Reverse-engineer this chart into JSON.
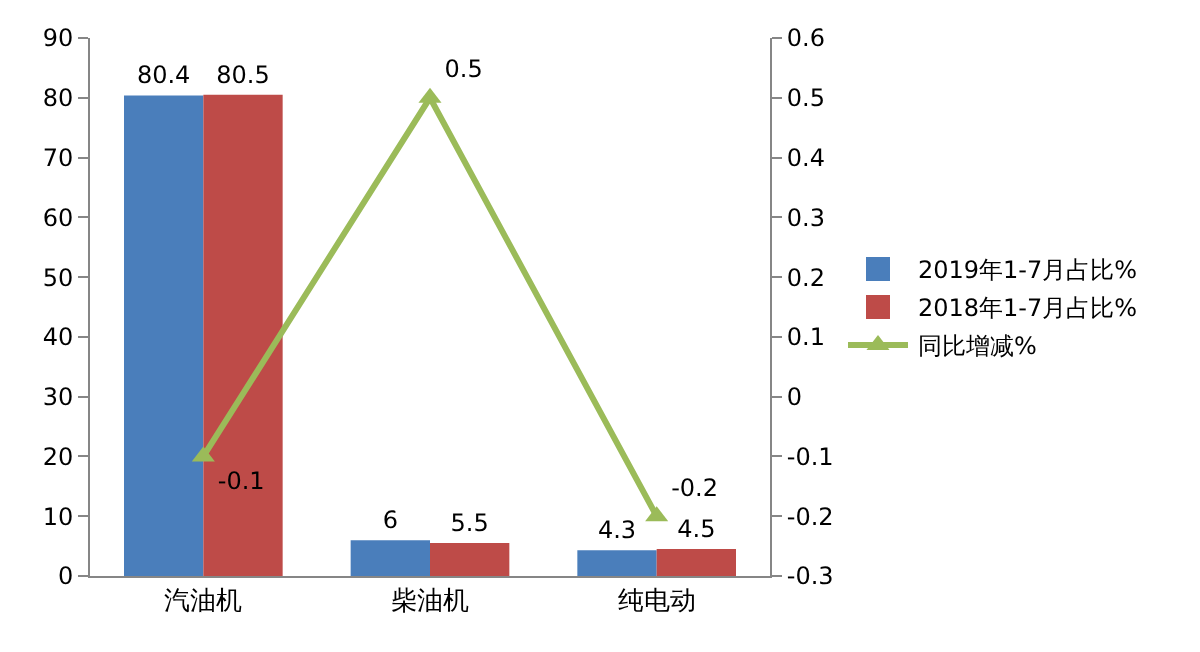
{
  "chart_data": {
    "type": "bar",
    "categories": [
      "汽油机",
      "柴油机",
      "纯电动"
    ],
    "series": [
      {
        "name": "2019年1-7月占比%",
        "color": "#4a7ebb",
        "values": [
          80.4,
          6,
          4.3
        ]
      },
      {
        "name": "2018年1-7月占比%",
        "color": "#be4b48",
        "values": [
          80.5,
          5.5,
          4.5
        ]
      },
      {
        "name": "同比增减%",
        "color": "#9bbb59",
        "values": [
          -0.1,
          0.5,
          -0.2
        ],
        "type": "line",
        "axis": "y2",
        "marker": "triangle"
      }
    ],
    "ylim": [
      0,
      90
    ],
    "yticks": [
      0,
      10,
      20,
      30,
      40,
      50,
      60,
      70,
      80,
      90
    ],
    "y2lim": [
      -0.3,
      0.6
    ],
    "y2ticks": [
      -0.3,
      -0.2,
      -0.1,
      0,
      0.1,
      0.2,
      0.3,
      0.4,
      0.5,
      0.6
    ],
    "data_labels": true,
    "legend": "right",
    "grid": false
  }
}
